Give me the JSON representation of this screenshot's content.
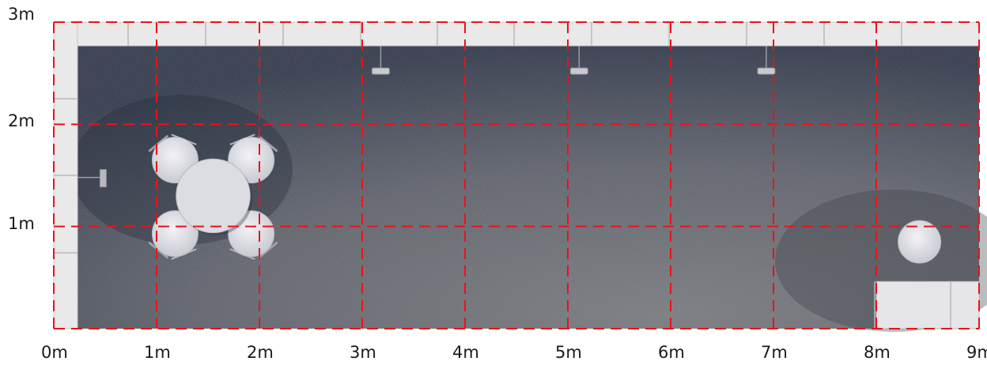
{
  "plan": {
    "unit": "m",
    "width_m": 9,
    "depth_m": 3,
    "grid_step_m": 1,
    "colors": {
      "carpet_dark": "#2c3446",
      "carpet_light": "#6b6d72",
      "wall": "#e9e9ea",
      "furniture": "#dcdde2",
      "grid": "#e8141a"
    }
  },
  "axes": {
    "x_ticks": [
      "0m",
      "1m",
      "2m",
      "3m",
      "4m",
      "5m",
      "6m",
      "7m",
      "8m",
      "9m"
    ],
    "y_ticks": [
      "1m",
      "2m",
      "3m"
    ]
  },
  "furniture": {
    "table": {
      "icon": "round-table-icon",
      "center_m": [
        1.55,
        1.3
      ],
      "radius_m": 0.36
    },
    "chairs": [
      {
        "icon": "chair-icon",
        "center_m": [
          1.18,
          1.65
        ]
      },
      {
        "icon": "chair-icon",
        "center_m": [
          1.92,
          1.65
        ]
      },
      {
        "icon": "chair-icon",
        "center_m": [
          1.18,
          0.93
        ]
      },
      {
        "icon": "chair-icon",
        "center_m": [
          1.92,
          0.93
        ]
      }
    ],
    "stool": {
      "icon": "stool-icon",
      "center_m": [
        8.42,
        0.85
      ]
    },
    "counter": {
      "icon": "counter-icon",
      "x_m": [
        7.8,
        9.0
      ],
      "y_m": [
        0.0,
        0.5
      ]
    },
    "wall_lights": [
      {
        "icon": "spotlight-icon",
        "x_m": 3.18
      },
      {
        "icon": "spotlight-icon",
        "x_m": 5.11
      },
      {
        "icon": "spotlight-icon",
        "x_m": 6.93
      }
    ],
    "wall_fixture": {
      "icon": "socket-icon",
      "x_m": 0.48,
      "y_m": 1.48
    }
  }
}
